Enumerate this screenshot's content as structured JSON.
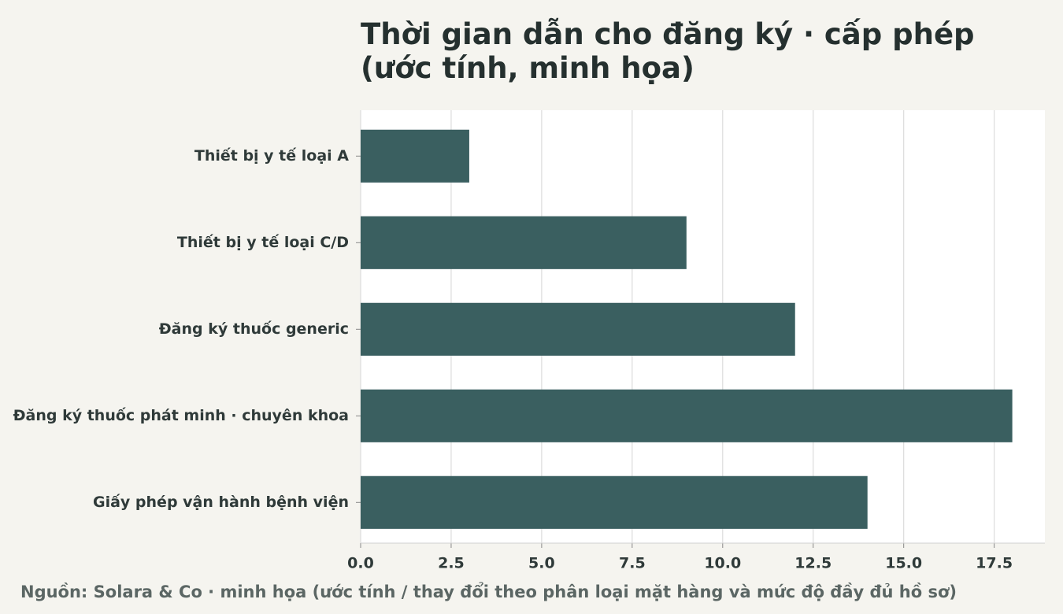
{
  "chart_data": {
    "type": "barh",
    "title": "Thời gian dẫn cho đăng ký · cấp phép (ước tính, minh họa)",
    "source": "Nguồn: Solara & Co · minh họa (ước tính / thay đổi theo phân loại mặt hàng và mức độ đầy đủ hồ sơ)",
    "categories": [
      "Thiết bị y tế loại A",
      "Thiết bị y tế loại C/D",
      "Đăng ký thuốc generic",
      "Đăng ký thuốc phát minh · chuyên khoa",
      "Giấy phép vận hành bệnh viện"
    ],
    "values": [
      3,
      9,
      12,
      18,
      14
    ],
    "color": "#3a5f60",
    "xlim": [
      0,
      18.9
    ],
    "xticks": [
      {
        "value": 0,
        "label": "0.0"
      },
      2.5,
      {
        "value": 5,
        "label": "5.0"
      },
      7.5,
      {
        "value": 10,
        "label": "10.0"
      },
      12.5,
      {
        "value": 15,
        "label": "15.0"
      },
      17.5
    ],
    "grid": true
  }
}
